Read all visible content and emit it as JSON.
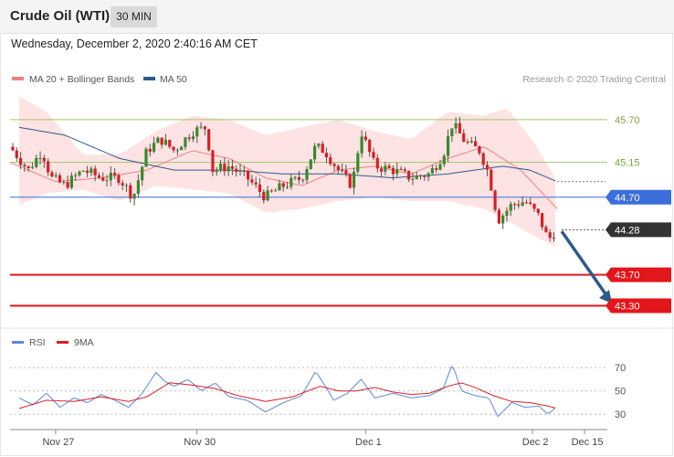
{
  "header": {
    "title": "Crude Oil (WTI)",
    "timeframe": "30 MIN",
    "date": "Wednesday, December 2, 2020 2:40:16 AM CET"
  },
  "legend": {
    "ma20": "MA 20 + Bollinger Bands",
    "ma50": "MA 50",
    "rsi": "RSI",
    "ma9": "9MA",
    "credit": "Research © 2020 Trading Central"
  },
  "colors": {
    "bull": "#3a8a2b",
    "bear": "#d81f24",
    "ma20": "#f08080",
    "ma50": "#2d5a8c",
    "band": "#fde0e0",
    "support": "#e3161b",
    "pivot": "#3a6fdb",
    "price": "#333333",
    "resistance": "#a4c569",
    "rsi": "#5b8bd6",
    "rsiMa": "#d81f24",
    "arrow": "#2c5a8b"
  },
  "chart_data": [
    {
      "type": "candlestick",
      "ylim": [
        43.0,
        46.3
      ],
      "xlim": [
        0,
        655
      ],
      "x_ticks": [
        {
          "label": "Nov 27",
          "x": 50
        },
        {
          "label": "Nov 30",
          "x": 205
        },
        {
          "label": "Dec 1",
          "x": 390
        },
        {
          "label": "Dec 2",
          "x": 573
        },
        {
          "label": "Dec 15",
          "x": 630
        }
      ],
      "levels": [
        {
          "value": 45.7,
          "label": "45.70",
          "role": "resistance"
        },
        {
          "value": 45.15,
          "label": "45.15",
          "role": "resistance"
        },
        {
          "value": 44.7,
          "label": "44.70",
          "role": "pivot"
        },
        {
          "value": 44.28,
          "label": "44.28",
          "role": "price"
        },
        {
          "value": 43.7,
          "label": "43.70",
          "role": "support"
        },
        {
          "value": 43.3,
          "label": "43.30",
          "role": "support"
        }
      ],
      "close_anchors": [
        [
          0,
          45.35
        ],
        [
          20,
          45.05
        ],
        [
          35,
          45.3
        ],
        [
          45,
          44.95
        ],
        [
          60,
          44.85
        ],
        [
          80,
          45.05
        ],
        [
          100,
          44.95
        ],
        [
          120,
          44.95
        ],
        [
          135,
          44.7
        ],
        [
          150,
          45.3
        ],
        [
          165,
          45.45
        ],
        [
          180,
          45.3
        ],
        [
          200,
          45.55
        ],
        [
          215,
          45.6
        ],
        [
          222,
          45.05
        ],
        [
          240,
          45.1
        ],
        [
          260,
          44.95
        ],
        [
          280,
          44.7
        ],
        [
          300,
          44.85
        ],
        [
          320,
          44.95
        ],
        [
          335,
          45.35
        ],
        [
          345,
          45.3
        ],
        [
          360,
          45.05
        ],
        [
          375,
          44.85
        ],
        [
          385,
          45.55
        ],
        [
          400,
          45.1
        ],
        [
          420,
          45.05
        ],
        [
          440,
          44.95
        ],
        [
          460,
          45.0
        ],
        [
          475,
          45.25
        ],
        [
          485,
          45.65
        ],
        [
          500,
          45.4
        ],
        [
          515,
          45.3
        ],
        [
          525,
          45.0
        ],
        [
          535,
          44.4
        ],
        [
          550,
          44.6
        ],
        [
          565,
          44.65
        ],
        [
          580,
          44.45
        ],
        [
          590,
          44.15
        ],
        [
          600,
          44.28
        ]
      ],
      "ma20_anchors": [
        [
          0,
          45.15
        ],
        [
          50,
          44.9
        ],
        [
          100,
          44.95
        ],
        [
          150,
          45.05
        ],
        [
          200,
          45.3
        ],
        [
          240,
          45.2
        ],
        [
          280,
          44.95
        ],
        [
          320,
          44.85
        ],
        [
          360,
          45.05
        ],
        [
          400,
          45.1
        ],
        [
          440,
          45.0
        ],
        [
          480,
          45.2
        ],
        [
          520,
          45.35
        ],
        [
          560,
          45.05
        ],
        [
          600,
          44.55
        ]
      ],
      "ma50_anchors": [
        [
          10,
          45.6
        ],
        [
          60,
          45.5
        ],
        [
          120,
          45.2
        ],
        [
          180,
          45.05
        ],
        [
          240,
          45.05
        ],
        [
          300,
          45.0
        ],
        [
          360,
          45.0
        ],
        [
          420,
          44.95
        ],
        [
          480,
          45.0
        ],
        [
          540,
          45.1
        ],
        [
          570,
          45.05
        ],
        [
          600,
          44.9
        ]
      ],
      "band_upper_anchors": [
        [
          10,
          46.0
        ],
        [
          40,
          45.8
        ],
        [
          80,
          45.25
        ],
        [
          120,
          45.25
        ],
        [
          160,
          45.55
        ],
        [
          200,
          45.75
        ],
        [
          240,
          45.7
        ],
        [
          280,
          45.5
        ],
        [
          320,
          45.6
        ],
        [
          360,
          45.7
        ],
        [
          400,
          45.55
        ],
        [
          440,
          45.45
        ],
        [
          480,
          45.8
        ],
        [
          520,
          45.75
        ],
        [
          545,
          45.85
        ],
        [
          575,
          45.4
        ],
        [
          600,
          44.9
        ]
      ],
      "band_lower_anchors": [
        [
          10,
          44.6
        ],
        [
          40,
          44.75
        ],
        [
          80,
          44.8
        ],
        [
          120,
          44.65
        ],
        [
          160,
          44.85
        ],
        [
          200,
          44.8
        ],
        [
          240,
          44.75
        ],
        [
          280,
          44.5
        ],
        [
          320,
          44.55
        ],
        [
          360,
          44.65
        ],
        [
          400,
          44.7
        ],
        [
          440,
          44.65
        ],
        [
          480,
          44.65
        ],
        [
          520,
          44.55
        ],
        [
          545,
          44.4
        ],
        [
          575,
          44.2
        ],
        [
          600,
          44.05
        ]
      ],
      "forecast": {
        "from": [
          605,
          44.26
        ],
        "to": [
          660,
          43.33
        ]
      }
    },
    {
      "type": "line",
      "ylim": [
        20,
        78
      ],
      "y_ticks": [
        70,
        50,
        30
      ],
      "rsi_anchors": [
        [
          10,
          44
        ],
        [
          25,
          38
        ],
        [
          40,
          48
        ],
        [
          55,
          36
        ],
        [
          70,
          44
        ],
        [
          85,
          40
        ],
        [
          100,
          47
        ],
        [
          115,
          42
        ],
        [
          130,
          36
        ],
        [
          145,
          48
        ],
        [
          160,
          66
        ],
        [
          170,
          58
        ],
        [
          180,
          54
        ],
        [
          195,
          60
        ],
        [
          210,
          50
        ],
        [
          225,
          57
        ],
        [
          240,
          45
        ],
        [
          260,
          42
        ],
        [
          280,
          32
        ],
        [
          300,
          40
        ],
        [
          320,
          46
        ],
        [
          335,
          67
        ],
        [
          345,
          55
        ],
        [
          355,
          42
        ],
        [
          370,
          48
        ],
        [
          385,
          60
        ],
        [
          400,
          44
        ],
        [
          420,
          48
        ],
        [
          440,
          44
        ],
        [
          460,
          46
        ],
        [
          475,
          52
        ],
        [
          485,
          73
        ],
        [
          495,
          50
        ],
        [
          510,
          46
        ],
        [
          525,
          44
        ],
        [
          535,
          28
        ],
        [
          550,
          40
        ],
        [
          565,
          36
        ],
        [
          580,
          37
        ],
        [
          590,
          30
        ],
        [
          600,
          37
        ]
      ],
      "ma9_anchors": [
        [
          10,
          35
        ],
        [
          40,
          42
        ],
        [
          70,
          41
        ],
        [
          100,
          45
        ],
        [
          130,
          41
        ],
        [
          150,
          45
        ],
        [
          175,
          57
        ],
        [
          200,
          55
        ],
        [
          225,
          52
        ],
        [
          250,
          46
        ],
        [
          280,
          41
        ],
        [
          310,
          45
        ],
        [
          340,
          54
        ],
        [
          360,
          50
        ],
        [
          380,
          50
        ],
        [
          400,
          53
        ],
        [
          420,
          49
        ],
        [
          440,
          47
        ],
        [
          460,
          48
        ],
        [
          480,
          54
        ],
        [
          495,
          57
        ],
        [
          510,
          53
        ],
        [
          530,
          46
        ],
        [
          550,
          41
        ],
        [
          570,
          40
        ],
        [
          590,
          37
        ],
        [
          600,
          35
        ]
      ]
    }
  ]
}
